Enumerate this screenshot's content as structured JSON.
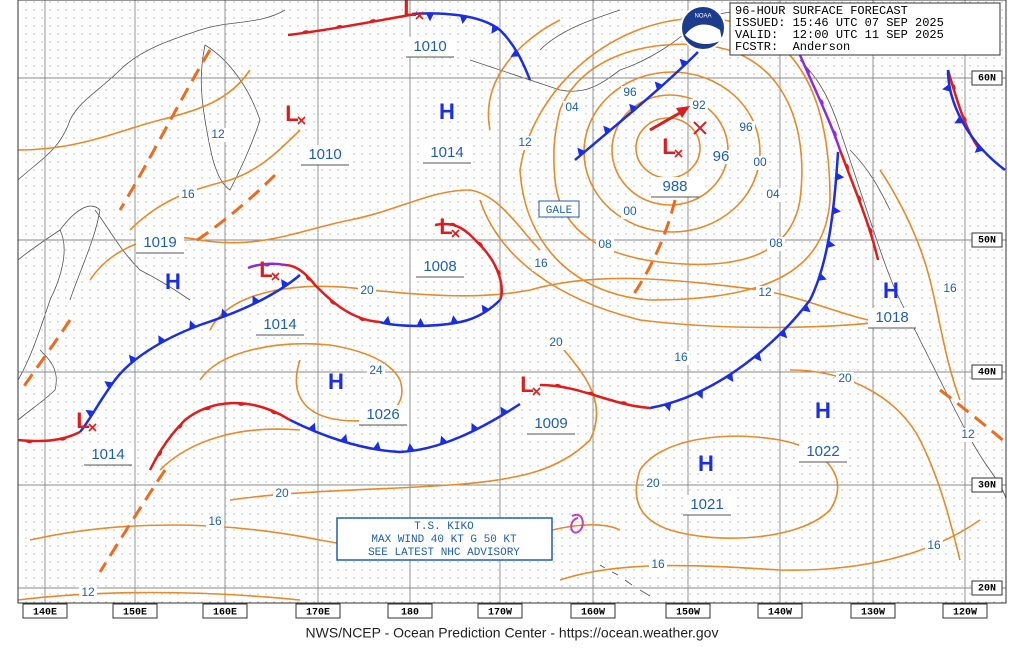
{
  "header": {
    "lines": [
      "96-HOUR SURFACE FORECAST",
      "ISSUED: 15:46 UTC 07 SEP 2025",
      "VALID:  12:00 UTC 11 SEP 2025",
      "FCSTR:  Anderson"
    ]
  },
  "logo": "NOAA",
  "pressure_systems": [
    {
      "symbol": "L",
      "pressure": 1010
    },
    {
      "symbol": "L",
      "pressure": 1010
    },
    {
      "symbol": "H",
      "pressure": 1014
    },
    {
      "symbol": "L",
      "pressure": 988
    },
    {
      "symbol": "L",
      "pressure": 1008
    },
    {
      "symbol": "H",
      "pressure": 1019
    },
    {
      "symbol": "L",
      "pressure": 1014
    },
    {
      "symbol": "H",
      "pressure": 1026
    },
    {
      "symbol": "L",
      "pressure": 1014
    },
    {
      "symbol": "L",
      "pressure": 1009
    },
    {
      "symbol": "H",
      "pressure": 1018
    },
    {
      "symbol": "H",
      "pressure": 1022
    },
    {
      "symbol": "H",
      "pressure": 1021
    }
  ],
  "isobar_labels": [
    "04",
    "96",
    "92",
    "96",
    "96",
    "00",
    "00",
    "04",
    "08",
    "08",
    "12",
    "12",
    "16",
    "16",
    "12",
    "20",
    "20",
    "16",
    "24",
    "20",
    "16",
    "12",
    "20",
    "20",
    "16",
    "16",
    "16",
    "12"
  ],
  "latitude_labels": [
    "60N",
    "50N",
    "40N",
    "30N",
    "20N"
  ],
  "longitude_labels": [
    "140E",
    "150E",
    "160E",
    "170E",
    "180",
    "170W",
    "160W",
    "150W",
    "140W",
    "130W",
    "120W"
  ],
  "gale_label": "GALE",
  "storm_advisory": {
    "lines": [
      "T.S. KIKO",
      "MAX WIND 40 KT G 50 KT",
      "SEE LATEST NHC ADVISORY"
    ]
  },
  "footer": "NWS/NCEP - Ocean Prediction Center - https://ocean.weather.gov"
}
